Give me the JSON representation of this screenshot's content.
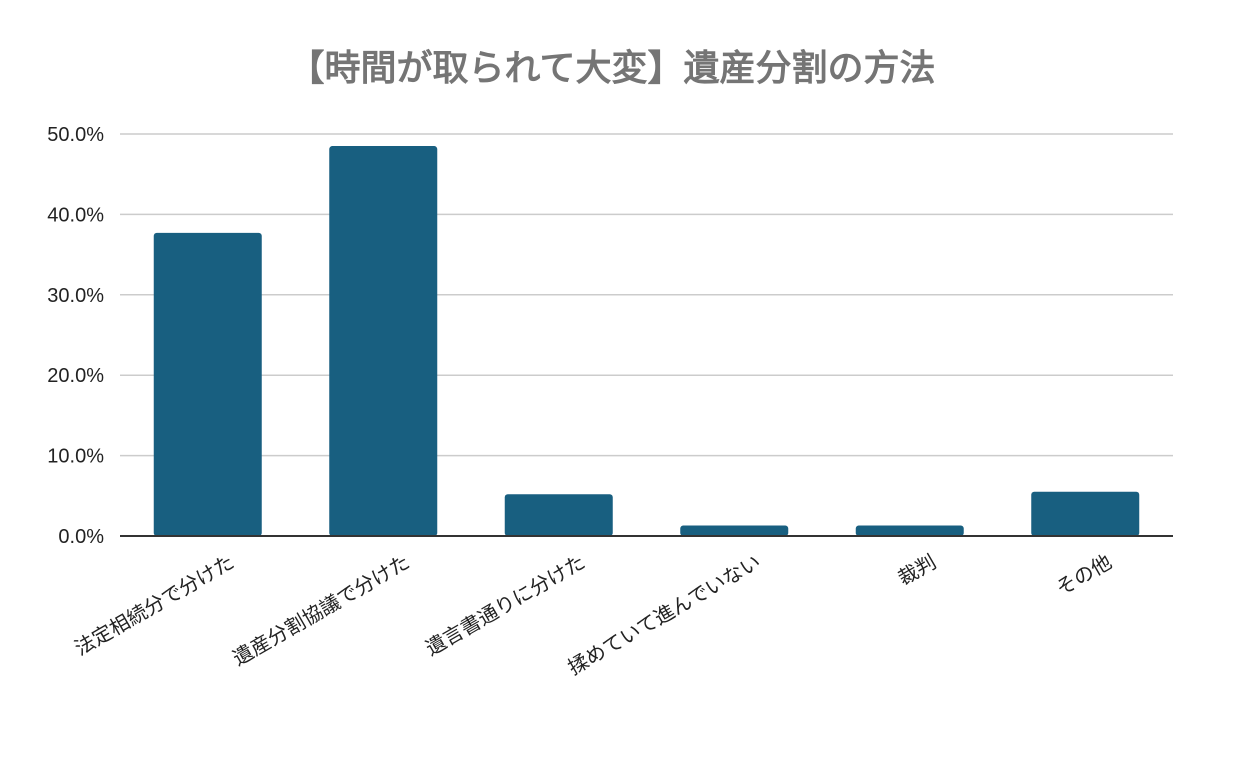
{
  "chart_data": {
    "type": "bar",
    "title": "【時間が取られて大変】遺産分割の方法",
    "xlabel": "",
    "ylabel": "",
    "categories": [
      "法定相続分で分けた",
      "遺産分割協議で分けた",
      "遺言書通りに分けた",
      "揉めていて進んでいない",
      "裁判",
      "その他"
    ],
    "values": [
      37.7,
      48.5,
      5.2,
      1.3,
      1.3,
      5.5
    ],
    "ylim": [
      0,
      50
    ],
    "yticks": [
      "0.0%",
      "10.0%",
      "20.0%",
      "30.0%",
      "40.0%",
      "50.0%"
    ],
    "grid": true,
    "bar_color": "#185f80",
    "grid_color": "#cccccc",
    "axis_color": "#333333",
    "title_color": "#757575"
  }
}
